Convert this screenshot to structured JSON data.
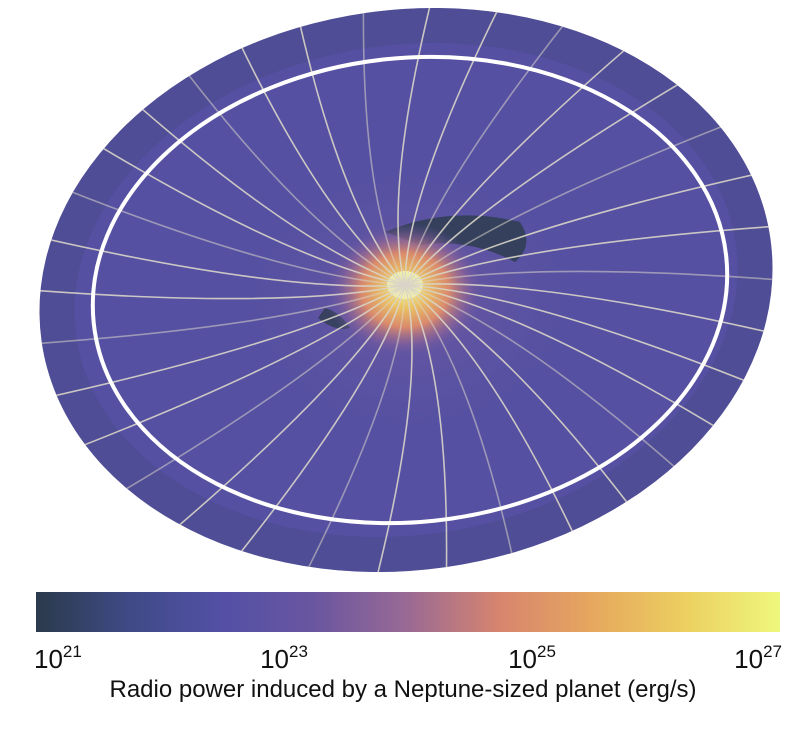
{
  "chart_data": {
    "type": "heatmap",
    "title": "",
    "colorbar": {
      "label": "Radio power induced by a Neptune-sized planet (erg/s)",
      "scale": "log",
      "range": [
        1e+21,
        1e+27
      ],
      "ticks": [
        {
          "base": "10",
          "exp": "21",
          "value": 1e+21
        },
        {
          "base": "10",
          "exp": "23",
          "value": 1e+23
        },
        {
          "base": "10",
          "exp": "25",
          "value": 1e+25
        },
        {
          "base": "10",
          "exp": "27",
          "value": 1e+27
        }
      ],
      "colormap": [
        "#2b3a4c",
        "#3f4a86",
        "#5350a6",
        "#6a56a0",
        "#9a6a94",
        "#d8856e",
        "#e6a85e",
        "#ecd060",
        "#eef77c"
      ]
    },
    "features": {
      "orbit_ring": "white",
      "field_lines": "grey-white streamlines radiating from central star",
      "peak_power_location": "center"
    }
  }
}
